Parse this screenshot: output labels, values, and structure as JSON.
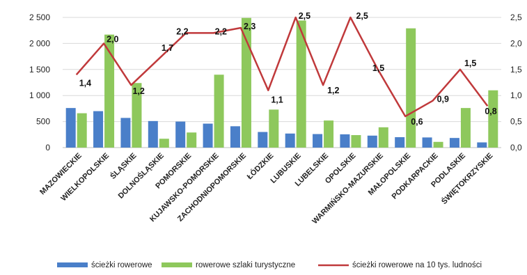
{
  "chart_data": {
    "type": "bar",
    "categories": [
      "MAZOWIECKIE",
      "WIELKOPOLSKIE",
      "ŚLĄSKIE",
      "DOLNOŚLĄSKIE",
      "POMORSKIE",
      "KUJAWSKO-POMORSKIE",
      "ZACHODNIOPOMORSKIE",
      "ŁÓDZKIE",
      "LUBUSKIE",
      "LUBELSKIE",
      "OPOLSKIE",
      "WARMIŃSKO-MAZURSKIE",
      "MAŁOPOLSKIE",
      "PODKARPACKIE",
      "PODLASKIE",
      "ŚWIĘTOKRZYSKIE"
    ],
    "series": [
      {
        "name": "ścieżki rowerowe",
        "kind": "bar",
        "axis": "left",
        "color": "#4a7fc9",
        "values": [
          760,
          700,
          570,
          510,
          500,
          460,
          410,
          300,
          270,
          260,
          255,
          230,
          200,
          195,
          185,
          100
        ]
      },
      {
        "name": "rowerowe szlaki turystyczne",
        "kind": "bar",
        "axis": "left",
        "color": "#8ec85c",
        "values": [
          660,
          2170,
          1240,
          170,
          290,
          1400,
          2490,
          730,
          2440,
          520,
          240,
          390,
          2290,
          110,
          760,
          1100
        ]
      },
      {
        "name": "ścieżki rowerowe na 10 tys. ludności",
        "kind": "line",
        "axis": "right",
        "color": "#c0393b",
        "values": [
          1.4,
          2.0,
          1.2,
          1.7,
          2.2,
          2.2,
          2.3,
          1.1,
          2.5,
          1.2,
          2.5,
          1.5,
          0.6,
          0.9,
          1.5,
          0.8
        ],
        "labels": [
          "1,4",
          "2,0",
          "1,2",
          "1,7",
          "2,2",
          "2,2",
          "2,3",
          "1,1",
          "2,5",
          "1,2",
          "2,5",
          "1,5",
          "0,6",
          "0,9",
          "1,5",
          "0,8"
        ]
      }
    ],
    "left_axis": {
      "min": 0,
      "max": 2500,
      "ticks": [
        "0",
        "500",
        "1 000",
        "1 500",
        "2 000",
        "2 500"
      ]
    },
    "right_axis": {
      "min": 0,
      "max": 2.5,
      "ticks": [
        "0,0",
        "0,5",
        "1,0",
        "1,5",
        "2,0",
        "2,5"
      ]
    },
    "grid": "horizontal",
    "legend": "bottom",
    "title": "",
    "xlabel": "",
    "ylabel": ""
  }
}
